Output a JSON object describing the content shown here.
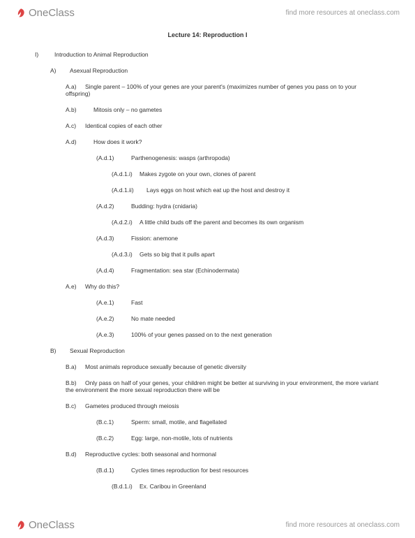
{
  "brand": "OneClass",
  "tagline": "find more resources at oneclass.com",
  "title": "Lecture 14: Reproduction I",
  "outline": [
    {
      "cls": "l0",
      "bcls": "bullet",
      "b": "I)",
      "t": "Introduction to Animal Reproduction"
    },
    {
      "cls": "l1",
      "bcls": "bullet",
      "b": "A)",
      "t": "Asexual Reproduction"
    },
    {
      "cls": "l2",
      "bcls": "bullet",
      "b": "A.a)",
      "t": "Single parent – 100% of your genes are your parent's (maximizes number of genes you pass on to your offspring)"
    },
    {
      "cls": "l2",
      "bcls": "bullet-wide",
      "b": "A.b)",
      "t": "Mitosis only – no gametes"
    },
    {
      "cls": "l2",
      "bcls": "bullet",
      "b": "A.c)",
      "t": "Identical copies of each other"
    },
    {
      "cls": "l2",
      "bcls": "bullet-wide",
      "b": "A.d)",
      "t": "How does it work?"
    },
    {
      "cls": "l3",
      "bcls": "bullet-xwide",
      "b": "(A.d.1)",
      "t": "Parthenogenesis: wasps (arthropoda)"
    },
    {
      "cls": "l4",
      "bcls": "bullet-wide",
      "b": "(A.d.1.i)",
      "t": "Makes zygote on your own, clones of parent"
    },
    {
      "cls": "l4",
      "bcls": "bullet-xwide",
      "b": "(A.d.1.ii)",
      "t": "Lays eggs on host which eat up the host and destroy it"
    },
    {
      "cls": "l3",
      "bcls": "bullet-xwide",
      "b": "(A.d.2)",
      "t": "Budding: hydra (cnidaria)"
    },
    {
      "cls": "l4",
      "bcls": "bullet-wide",
      "b": "(A.d.2.i)",
      "t": "A little child buds off the parent and becomes its own organism"
    },
    {
      "cls": "l3",
      "bcls": "bullet-xwide",
      "b": "(A.d.3)",
      "t": "Fission: anemone"
    },
    {
      "cls": "l4",
      "bcls": "bullet-wide",
      "b": "(A.d.3.i)",
      "t": "Gets so big that it pulls apart"
    },
    {
      "cls": "l3",
      "bcls": "bullet-xwide",
      "b": "(A.d.4)",
      "t": "Fragmentation: sea star (Echinodermata)"
    },
    {
      "cls": "l2",
      "bcls": "bullet",
      "b": "A.e)",
      "t": "Why do this?"
    },
    {
      "cls": "l3",
      "bcls": "bullet-xwide",
      "b": "(A.e.1)",
      "t": "Fast"
    },
    {
      "cls": "l3",
      "bcls": "bullet-xwide",
      "b": "(A.e.2)",
      "t": "No mate needed"
    },
    {
      "cls": "l3",
      "bcls": "bullet-xwide",
      "b": "(A.e.3)",
      "t": "100% of your genes passed on to the next generation"
    },
    {
      "cls": "l1",
      "bcls": "bullet",
      "b": "B)",
      "t": "Sexual Reproduction"
    },
    {
      "cls": "l2",
      "bcls": "bullet",
      "b": "B.a)",
      "t": "Most animals reproduce sexually because of genetic diversity"
    },
    {
      "cls": "l2",
      "bcls": "bullet",
      "b": "B.b)",
      "t": "Only pass on half of your genes, your children might be better at surviving in your environment, the more variant the environment the more sexual reproduction there will be"
    },
    {
      "cls": "l2",
      "bcls": "bullet",
      "b": "B.c)",
      "t": "Gametes produced through meiosis"
    },
    {
      "cls": "l3",
      "bcls": "bullet-xwide",
      "b": "(B.c.1)",
      "t": "Sperm: small, motile, and flagellated"
    },
    {
      "cls": "l3",
      "bcls": "bullet-xwide",
      "b": "(B.c.2)",
      "t": "Egg: large, non-motile, lots of nutrients"
    },
    {
      "cls": "l2",
      "bcls": "bullet",
      "b": "B.d)",
      "t": "Reproductive cycles: both seasonal and hormonal"
    },
    {
      "cls": "l3",
      "bcls": "bullet-xwide",
      "b": "(B.d.1)",
      "t": "Cycles times reproduction for best resources"
    },
    {
      "cls": "l4",
      "bcls": "bullet-wide",
      "b": "(B.d.1.i)",
      "t": "Ex. Caribou in Greenland"
    }
  ]
}
